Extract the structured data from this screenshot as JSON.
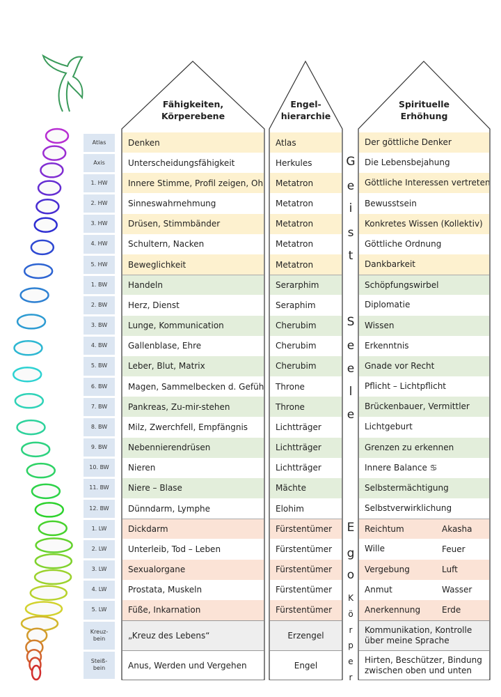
{
  "headers": [
    [
      "Fähigkeiten,",
      "Körperebene"
    ],
    [
      "Engel-",
      "hierarchie"
    ],
    [
      "Spirituelle",
      "Erhöhung"
    ]
  ],
  "vertical_words": [
    {
      "letters": [
        "G",
        "e",
        "i",
        "s",
        "t"
      ]
    },
    {
      "letters": [
        "S",
        "e",
        "e",
        "l",
        "e"
      ]
    },
    {
      "letters": [
        "E",
        "g",
        "o"
      ]
    },
    {
      "letters": [
        "K",
        "ö",
        "r",
        "p",
        "e",
        "r"
      ]
    }
  ],
  "rows": [
    {
      "label": [
        "Atlas"
      ],
      "ability": "Denken",
      "angel": "Atlas",
      "spiritual": [
        "Der göttliche Denker"
      ]
    },
    {
      "label": [
        "Axis"
      ],
      "ability": "Unterscheidungsfähigkeit",
      "angel": "Herkules",
      "spiritual": [
        "Die Lebensbejahung"
      ]
    },
    {
      "label": [
        "1. HW"
      ],
      "ability": "Innere Stimme, Profil zeigen, Ohr",
      "angel": "Metatron",
      "spiritual": [
        "Göttliche Interessen vertreten"
      ]
    },
    {
      "label": [
        "2. HW"
      ],
      "ability": "Sinneswahrnehmung",
      "angel": "Metatron",
      "spiritual": [
        "Bewusstsein"
      ]
    },
    {
      "label": [
        "3. HW"
      ],
      "ability": "Drüsen, Stimmbänder",
      "angel": "Metatron",
      "spiritual": [
        "Konkretes Wissen (Kollektiv)"
      ]
    },
    {
      "label": [
        "4. HW"
      ],
      "ability": "Schultern, Nacken",
      "angel": "Metatron",
      "spiritual": [
        "Göttliche Ordnung"
      ]
    },
    {
      "label": [
        "5. HW"
      ],
      "ability": "Beweglichkeit",
      "angel": "Metatron",
      "spiritual": [
        "Dankbarkeit"
      ]
    },
    {
      "label": [
        "1. BW"
      ],
      "ability": "Handeln",
      "angel": "Serarphim",
      "spiritual": [
        "Schöpfungswirbel"
      ]
    },
    {
      "label": [
        "2. BW"
      ],
      "ability": "Herz, Dienst",
      "angel": "Seraphim",
      "spiritual": [
        "Diplomatie"
      ]
    },
    {
      "label": [
        "3. BW"
      ],
      "ability": "Lunge, Kommunication",
      "angel": "Cherubim",
      "spiritual": [
        "Wissen"
      ]
    },
    {
      "label": [
        "4. BW"
      ],
      "ability": "Gallenblase, Ehre",
      "angel": "Cherubim",
      "spiritual": [
        "Erkenntnis"
      ]
    },
    {
      "label": [
        "5. BW"
      ],
      "ability": "Leber, Blut, Matrix",
      "angel": "Cherubim",
      "spiritual": [
        "Gnade vor Recht"
      ]
    },
    {
      "label": [
        "6. BW"
      ],
      "ability": "Magen, Sammelbecken d. Gefühle",
      "angel": "Throne",
      "spiritual": [
        "Pflicht – Lichtpflicht"
      ]
    },
    {
      "label": [
        "7. BW"
      ],
      "ability": "Pankreas, Zu-mir-stehen",
      "angel": "Throne",
      "spiritual": [
        "Brückenbauer, Vermittler"
      ]
    },
    {
      "label": [
        "8. BW"
      ],
      "ability": "Milz, Zwerchfell, Empfängnis",
      "angel": "Lichtträger",
      "spiritual": [
        "Lichtgeburt"
      ]
    },
    {
      "label": [
        "9. BW"
      ],
      "ability": "Nebennierendrüsen",
      "angel": "Lichtträger",
      "spiritual": [
        "Grenzen zu erkennen"
      ]
    },
    {
      "label": [
        "10. BW"
      ],
      "ability": "Nieren",
      "angel": "Lichtträger",
      "spiritual": [
        "Innere Balance ♋"
      ]
    },
    {
      "label": [
        "11. BW"
      ],
      "ability": "Niere – Blase",
      "angel": "Mächte",
      "spiritual": [
        "Selbstermächtigung"
      ]
    },
    {
      "label": [
        "12. BW"
      ],
      "ability": "Dünndarm, Lymphe",
      "angel": "Elohim",
      "spiritual": [
        "Selbstverwirklichung"
      ]
    },
    {
      "label": [
        "1. LW"
      ],
      "ability": "Dickdarm",
      "angel": "Fürstentümer",
      "spiritual": [
        "Reichtum"
      ],
      "element": "Akasha"
    },
    {
      "label": [
        "2. LW"
      ],
      "ability": "Unterleib, Tod – Leben",
      "angel": "Fürstentümer",
      "spiritual": [
        "Wille"
      ],
      "element": "Feuer"
    },
    {
      "label": [
        "3. LW"
      ],
      "ability": "Sexualorgane",
      "angel": "Fürstentümer",
      "spiritual": [
        "Vergebung"
      ],
      "element": "Luft"
    },
    {
      "label": [
        "4. LW"
      ],
      "ability": "Prostata, Muskeln",
      "angel": "Fürstentümer",
      "spiritual": [
        "Anmut"
      ],
      "element": "Wasser"
    },
    {
      "label": [
        "5. LW"
      ],
      "ability": "Füße, Inkarnation",
      "angel": "Fürstentümer",
      "spiritual": [
        "Anerkennung"
      ],
      "element": "Erde"
    },
    {
      "label": [
        "Kreuz-",
        "bein"
      ],
      "ability": "„Kreuz des Lebens“",
      "angel": "Erzengel",
      "spiritual": [
        "Kommunikation, Kontrolle",
        "über meine Sprache"
      ]
    },
    {
      "label": [
        "Steiß-",
        "bein"
      ],
      "ability": "Anus, Werden und Vergehen",
      "angel": "Engel",
      "spiritual": [
        "Hirten, Beschützer, Bindung",
        "zwischen oben und unten"
      ]
    }
  ]
}
